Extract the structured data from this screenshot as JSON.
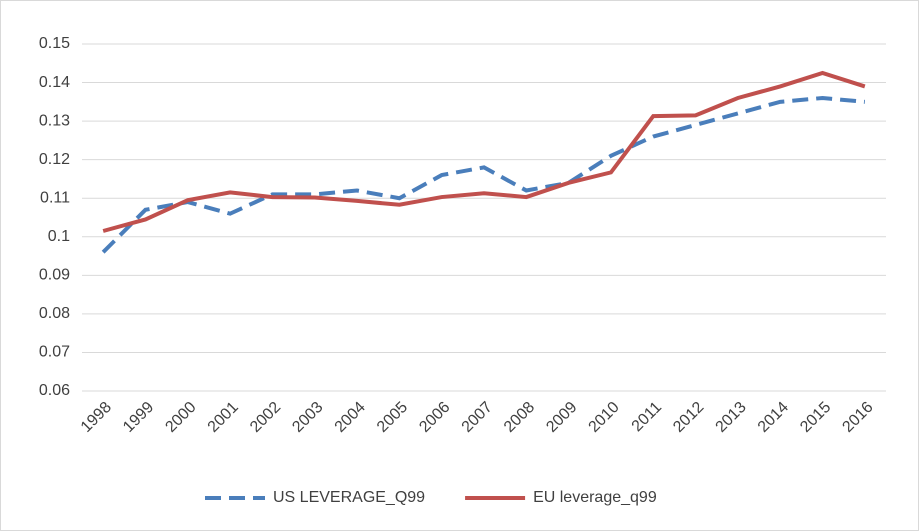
{
  "chart_data": {
    "type": "line",
    "categories": [
      "1998",
      "1999",
      "2000",
      "2001",
      "2002",
      "2003",
      "2004",
      "2005",
      "2006",
      "2007",
      "2008",
      "2009",
      "2010",
      "2011",
      "2012",
      "2013",
      "2014",
      "2015",
      "2016"
    ],
    "series": [
      {
        "name": "US LEVERAGE_Q99",
        "color": "#4a7ebb",
        "line_style": "dashed",
        "values": [
          0.096,
          0.107,
          0.109,
          0.106,
          0.111,
          0.111,
          0.112,
          0.11,
          0.116,
          0.118,
          0.112,
          0.114,
          0.121,
          0.126,
          0.129,
          0.132,
          0.135,
          0.136,
          0.135
        ]
      },
      {
        "name": "EU leverage_q99",
        "color": "#c0504d",
        "line_style": "solid",
        "values": [
          0.1015,
          0.1045,
          0.1095,
          0.1115,
          0.1103,
          0.1102,
          0.1093,
          0.1083,
          0.1103,
          0.1113,
          0.1103,
          0.114,
          0.1167,
          0.1313,
          0.1315,
          0.136,
          0.139,
          0.1425,
          0.139
        ]
      }
    ],
    "ylim": [
      0.06,
      0.15
    ],
    "yticks": [
      0.06,
      0.07,
      0.08,
      0.09,
      0.1,
      0.11,
      0.12,
      0.13,
      0.14,
      0.15
    ],
    "grid": true,
    "legend": "bottom"
  }
}
